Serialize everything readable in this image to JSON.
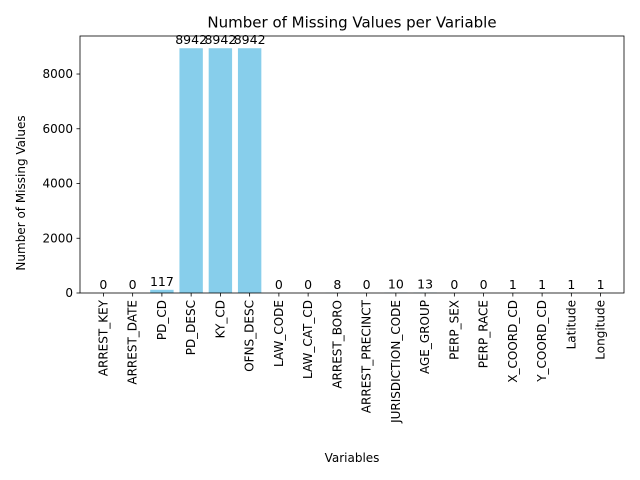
{
  "chart_data": {
    "type": "bar",
    "title": "Number of Missing Values per Variable",
    "xlabel": "Variables",
    "ylabel": "Number of Missing Values",
    "categories": [
      "ARREST_KEY",
      "ARREST_DATE",
      "PD_CD",
      "PD_DESC",
      "KY_CD",
      "OFNS_DESC",
      "LAW_CODE",
      "LAW_CAT_CD",
      "ARREST_BORO",
      "ARREST_PRECINCT",
      "JURISDICTION_CODE",
      "AGE_GROUP",
      "PERP_SEX",
      "PERP_RACE",
      "X_COORD_CD",
      "Y_COORD_CD",
      "Latitude",
      "Longitude"
    ],
    "values": [
      0,
      0,
      117,
      8942,
      8942,
      8942,
      0,
      0,
      8,
      0,
      10,
      13,
      0,
      0,
      1,
      1,
      1,
      1
    ],
    "ylim": [
      0,
      9389
    ],
    "yticks": [
      0,
      2000,
      4000,
      6000,
      8000
    ],
    "grid": false,
    "bar_color": "#87ceeb"
  }
}
